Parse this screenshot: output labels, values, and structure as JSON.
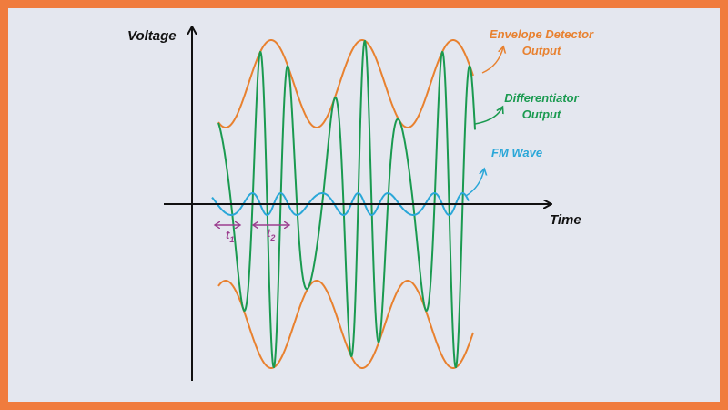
{
  "axes": {
    "y_label": "Voltage",
    "x_label": "Time"
  },
  "curve_labels": {
    "envelope": [
      "Envelope Detector",
      "Output"
    ],
    "differentiator": [
      "Differentiator",
      "Output"
    ],
    "fm_wave": "FM Wave"
  },
  "intervals": [
    {
      "symbol": "t",
      "subscript": "1"
    },
    {
      "symbol": "t",
      "subscript": "2"
    }
  ]
}
